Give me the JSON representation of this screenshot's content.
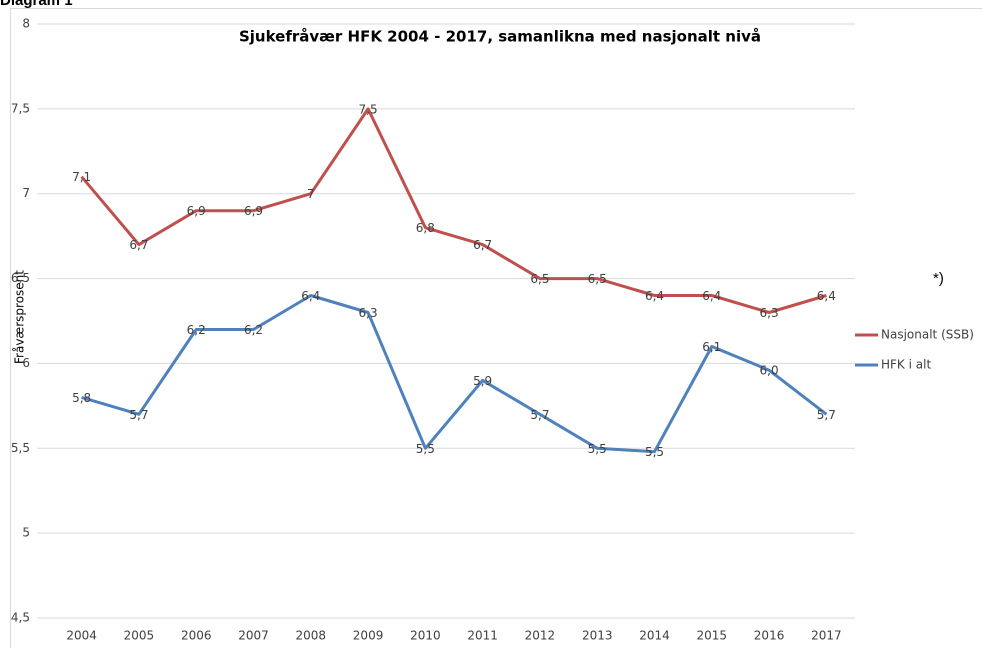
{
  "heading": "Diagram 1",
  "chart_data": {
    "type": "line",
    "title": "Sjukefråvær HFK 2004 - 2017, samanlikna med nasjonalt nivå",
    "y_label": "Fråværsprosent",
    "annotation": "*)",
    "categories": [
      "2004",
      "2005",
      "2006",
      "2007",
      "2008",
      "2009",
      "2010",
      "2011",
      "2012",
      "2013",
      "2014",
      "2015",
      "2016",
      "2017"
    ],
    "series": [
      {
        "name": "Nasjonalt (SSB)",
        "color": "#c0504d",
        "values": [
          7.1,
          6.7,
          6.9,
          6.9,
          7,
          7.5,
          6.8,
          6.7,
          6.5,
          6.5,
          6.4,
          6.4,
          6.3,
          6.4
        ],
        "value_labels": [
          "7,1",
          "6,7",
          "6,9",
          "6,9",
          "7",
          "7,5",
          "6,8",
          "6,7",
          "6,5",
          "6,5",
          "6,4",
          "6,4",
          "6,3",
          "6,4"
        ]
      },
      {
        "name": "HFK i alt",
        "color": "#4f81bd",
        "values": [
          5.8,
          5.7,
          6.2,
          6.2,
          6.4,
          6.3,
          5.5,
          5.9,
          5.7,
          5.5,
          5.48,
          6.1,
          5.96,
          5.7
        ],
        "value_labels": [
          "5,8",
          "5,7",
          "6,2",
          "6,2",
          "6,4",
          "6,3",
          "5,5",
          "5,9",
          "5,7",
          "5,5",
          "5,5",
          "6,1",
          "6,0",
          "5,7"
        ]
      }
    ],
    "ylim": [
      4.5,
      8
    ],
    "yticks": [
      {
        "value": 4.5,
        "label": "4,5"
      },
      5,
      {
        "value": 5.5,
        "label": "5,5"
      },
      6,
      {
        "value": 6.5,
        "label": "6,5"
      },
      7,
      {
        "value": 7.5,
        "label": "7,5"
      },
      8
    ],
    "grid": true,
    "legend": "right"
  }
}
